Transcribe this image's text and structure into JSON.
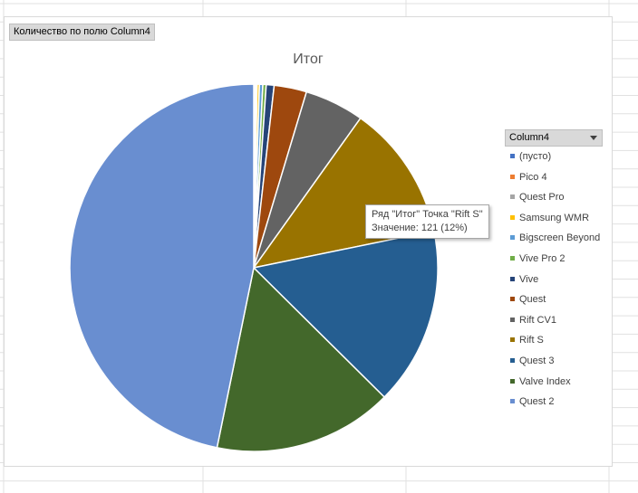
{
  "field_button_label": "Количество по полю Column4",
  "legend_header": "Column4",
  "tooltip": {
    "line1": "Ряд \"Итог\" Точка \"Rift S\"",
    "line2": "Значение: 121 (12%)"
  },
  "chart_data": {
    "type": "pie",
    "title": "Итог",
    "legend_position": "right",
    "categories": [
      "(пусто)",
      "Pico 4",
      "Quest Pro",
      "Samsung WMR",
      "Bigscreen Beyond",
      "Vive Pro 2",
      "Vive",
      "Quest",
      "Rift CV1",
      "Rift S",
      "Quest 3",
      "Valve Index",
      "Quest 2"
    ],
    "values": [
      1,
      1,
      1,
      2,
      3,
      3,
      7,
      29,
      53,
      121,
      159,
      160,
      475
    ],
    "colors": [
      "#4472c4",
      "#ed7d31",
      "#a5a5a5",
      "#ffc000",
      "#5b9bd5",
      "#70ad47",
      "#264478",
      "#9e480e",
      "#636363",
      "#997300",
      "#255e91",
      "#43682b",
      "#698ed0"
    ]
  }
}
